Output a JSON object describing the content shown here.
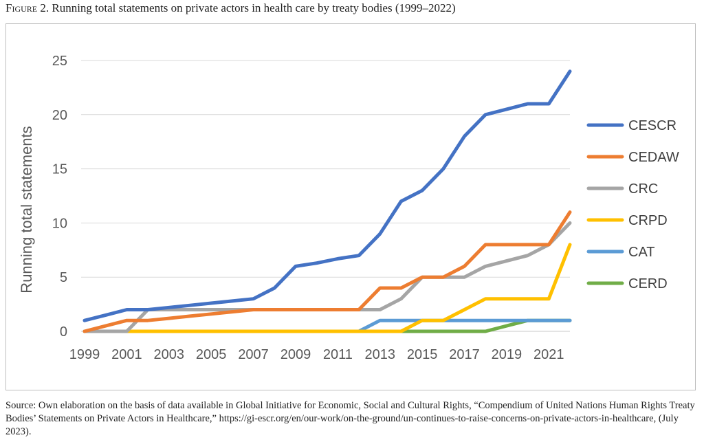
{
  "caption": {
    "label": "Figure 2.",
    "text": "Running total statements on private actors in health care by treaty bodies (1999–2022)"
  },
  "source": "Source: Own elaboration on the basis of data available in Global Initiative for Economic, Social and Cultural Rights, “Compendium of United Nations Human Rights Treaty Bodies’ Statements on Private Actors in Healthcare,” https://gi-escr.org/en/our-work/on-the-ground/un-continues-to-raise-concerns-on-private-actors-in-healthcare, (July 2023).",
  "chart_data": {
    "type": "line",
    "title": "",
    "xlabel": "",
    "ylabel": "Running  total statements",
    "x": [
      1999,
      2000,
      2001,
      2002,
      2003,
      2004,
      2005,
      2006,
      2007,
      2008,
      2009,
      2010,
      2011,
      2012,
      2013,
      2014,
      2015,
      2016,
      2017,
      2018,
      2019,
      2020,
      2021,
      2022
    ],
    "xticks": [
      "1999",
      "2001",
      "2003",
      "2005",
      "2007",
      "2009",
      "2011",
      "2013",
      "2015",
      "2017",
      "2019",
      "2021"
    ],
    "ylim": [
      0,
      25
    ],
    "yticks": [
      "0",
      "5",
      "10",
      "15",
      "20",
      "25"
    ],
    "grid": "horizontal",
    "legend_position": "right",
    "series": [
      {
        "name": "CESCR",
        "color": "#4472c4",
        "values": [
          1,
          1.5,
          2,
          2,
          2.2,
          2.4,
          2.6,
          2.8,
          3,
          4,
          6,
          6.3,
          6.7,
          7,
          9,
          12,
          13,
          15,
          18,
          20,
          20.5,
          21,
          21,
          24
        ]
      },
      {
        "name": "CEDAW",
        "color": "#ed7d31",
        "values": [
          0,
          0.5,
          1,
          1,
          1.2,
          1.4,
          1.6,
          1.8,
          2,
          2,
          2,
          2,
          2,
          2,
          4,
          4,
          5,
          5,
          6,
          8,
          8,
          8,
          8,
          11
        ]
      },
      {
        "name": "CRC",
        "color": "#a5a5a5",
        "values": [
          0,
          0,
          0,
          2,
          2,
          2,
          2,
          2,
          2,
          2,
          2,
          2,
          2,
          2,
          2,
          3,
          5,
          5,
          5,
          6,
          6.5,
          7,
          8,
          10
        ]
      },
      {
        "name": "CRPD",
        "color": "#ffc000",
        "values": [
          0,
          0,
          0,
          0,
          0,
          0,
          0,
          0,
          0,
          0,
          0,
          0,
          0,
          0,
          0,
          0,
          1,
          1,
          2,
          3,
          3,
          3,
          3,
          8
        ]
      },
      {
        "name": "CAT",
        "color": "#5b9bd5",
        "values": [
          0,
          0,
          0,
          0,
          0,
          0,
          0,
          0,
          0,
          0,
          0,
          0,
          0,
          0,
          1,
          1,
          1,
          1,
          1,
          1,
          1,
          1,
          1,
          1
        ]
      },
      {
        "name": "CERD",
        "color": "#70ad47",
        "values": [
          0,
          0,
          0,
          0,
          0,
          0,
          0,
          0,
          0,
          0,
          0,
          0,
          0,
          0,
          0,
          0,
          0,
          0,
          0,
          0,
          0.5,
          1,
          1,
          1
        ]
      }
    ]
  }
}
